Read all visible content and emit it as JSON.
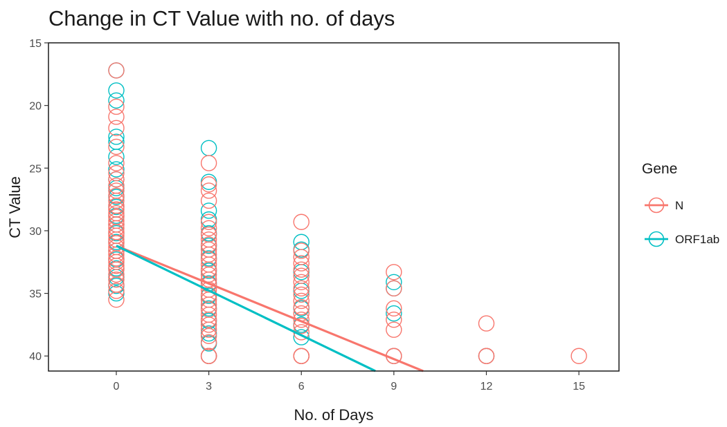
{
  "chart_data": {
    "type": "scatter",
    "title": "Change in CT Value with no. of days",
    "xlabel": "No. of Days",
    "ylabel": "CT Value",
    "xlim": [
      -2.2,
      16.3
    ],
    "ylim": [
      15,
      41.2
    ],
    "y_reversed": true,
    "x_ticks": [
      0,
      3,
      6,
      9,
      12,
      15
    ],
    "y_ticks": [
      15,
      20,
      25,
      30,
      35,
      40
    ],
    "grid": false,
    "legend_title": "Gene",
    "legend_position": "right",
    "series": [
      {
        "name": "N",
        "color": "#F8766D",
        "points": [
          [
            0,
            17.2
          ],
          [
            0,
            20.1
          ],
          [
            0,
            20.9
          ],
          [
            0,
            21.8
          ],
          [
            0,
            23.3
          ],
          [
            0,
            24.6
          ],
          [
            0,
            25.4
          ],
          [
            0,
            25.9
          ],
          [
            0,
            26.4
          ],
          [
            0,
            26.8
          ],
          [
            0,
            27.2
          ],
          [
            0,
            27.6
          ],
          [
            0,
            28.0
          ],
          [
            0,
            28.3
          ],
          [
            0,
            28.6
          ],
          [
            0,
            28.9
          ],
          [
            0,
            29.2
          ],
          [
            0,
            29.5
          ],
          [
            0,
            29.8
          ],
          [
            0,
            30.1
          ],
          [
            0,
            30.4
          ],
          [
            0,
            30.7
          ],
          [
            0,
            31.0
          ],
          [
            0,
            31.3
          ],
          [
            0,
            31.6
          ],
          [
            0,
            31.9
          ],
          [
            0,
            32.2
          ],
          [
            0,
            32.5
          ],
          [
            0,
            32.8
          ],
          [
            0,
            33.1
          ],
          [
            0,
            33.5
          ],
          [
            0,
            33.9
          ],
          [
            0,
            34.3
          ],
          [
            0,
            34.8
          ],
          [
            0,
            35.5
          ],
          [
            3,
            24.6
          ],
          [
            3,
            26.3
          ],
          [
            3,
            26.8
          ],
          [
            3,
            27.6
          ],
          [
            3,
            29.3
          ],
          [
            3,
            29.8
          ],
          [
            3,
            30.3
          ],
          [
            3,
            30.7
          ],
          [
            3,
            31.1
          ],
          [
            3,
            31.5
          ],
          [
            3,
            31.9
          ],
          [
            3,
            32.3
          ],
          [
            3,
            32.7
          ],
          [
            3,
            33.1
          ],
          [
            3,
            33.5
          ],
          [
            3,
            33.9
          ],
          [
            3,
            34.3
          ],
          [
            3,
            34.7
          ],
          [
            3,
            35.1
          ],
          [
            3,
            35.5
          ],
          [
            3,
            35.9
          ],
          [
            3,
            36.3
          ],
          [
            3,
            36.7
          ],
          [
            3,
            37.1
          ],
          [
            3,
            37.5
          ],
          [
            3,
            37.9
          ],
          [
            3,
            38.4
          ],
          [
            3,
            38.9
          ],
          [
            3,
            40
          ],
          [
            3,
            40
          ],
          [
            3,
            40
          ],
          [
            6,
            29.3
          ],
          [
            6,
            31.6
          ],
          [
            6,
            32.1
          ],
          [
            6,
            32.6
          ],
          [
            6,
            33.1
          ],
          [
            6,
            33.6
          ],
          [
            6,
            34.1
          ],
          [
            6,
            34.6
          ],
          [
            6,
            35.1
          ],
          [
            6,
            35.6
          ],
          [
            6,
            36.1
          ],
          [
            6,
            36.6
          ],
          [
            6,
            37.1
          ],
          [
            6,
            37.6
          ],
          [
            6,
            38.1
          ],
          [
            6,
            40
          ],
          [
            6,
            40
          ],
          [
            6,
            40
          ],
          [
            9,
            33.3
          ],
          [
            9,
            34.6
          ],
          [
            9,
            36.2
          ],
          [
            9,
            37.1
          ],
          [
            9,
            37.9
          ],
          [
            9,
            40
          ],
          [
            9,
            40
          ],
          [
            12,
            37.4
          ],
          [
            12,
            40
          ],
          [
            12,
            40
          ],
          [
            15,
            40
          ]
        ],
        "trend": {
          "x": [
            0,
            9.95
          ],
          "y": [
            31.2,
            41.2
          ]
        }
      },
      {
        "name": "ORF1ab",
        "color": "#00BFC4",
        "points": [
          [
            0,
            17.2
          ],
          [
            0,
            18.8
          ],
          [
            0,
            19.6
          ],
          [
            0,
            22.5
          ],
          [
            0,
            22.9
          ],
          [
            0,
            24.1
          ],
          [
            0,
            25.1
          ],
          [
            0,
            25.9
          ],
          [
            0,
            26.6
          ],
          [
            0,
            27.3
          ],
          [
            0,
            28.1
          ],
          [
            0,
            28.8
          ],
          [
            0,
            29.5
          ],
          [
            0,
            30.2
          ],
          [
            0,
            30.9
          ],
          [
            0,
            31.6
          ],
          [
            0,
            32.3
          ],
          [
            0,
            33.0
          ],
          [
            0,
            33.7
          ],
          [
            0,
            34.4
          ],
          [
            0,
            35.0
          ],
          [
            3,
            23.4
          ],
          [
            3,
            26.1
          ],
          [
            3,
            28.4
          ],
          [
            3,
            29.1
          ],
          [
            3,
            30.2
          ],
          [
            3,
            31.2
          ],
          [
            3,
            32.2
          ],
          [
            3,
            33.2
          ],
          [
            3,
            34.2
          ],
          [
            3,
            35.2
          ],
          [
            3,
            36.2
          ],
          [
            3,
            37.2
          ],
          [
            3,
            38.2
          ],
          [
            3,
            39.0
          ],
          [
            3,
            40
          ],
          [
            3,
            40
          ],
          [
            6,
            30.9
          ],
          [
            6,
            31.5
          ],
          [
            6,
            33.3
          ],
          [
            6,
            34.8
          ],
          [
            6,
            36.2
          ],
          [
            6,
            37.5
          ],
          [
            6,
            38.5
          ],
          [
            6,
            40
          ],
          [
            9,
            34.1
          ],
          [
            9,
            34.6
          ],
          [
            9,
            36.6
          ],
          [
            9,
            40
          ],
          [
            12,
            40
          ]
        ],
        "trend": {
          "x": [
            0,
            8.4
          ],
          "y": [
            31.2,
            41.2
          ]
        }
      }
    ]
  }
}
